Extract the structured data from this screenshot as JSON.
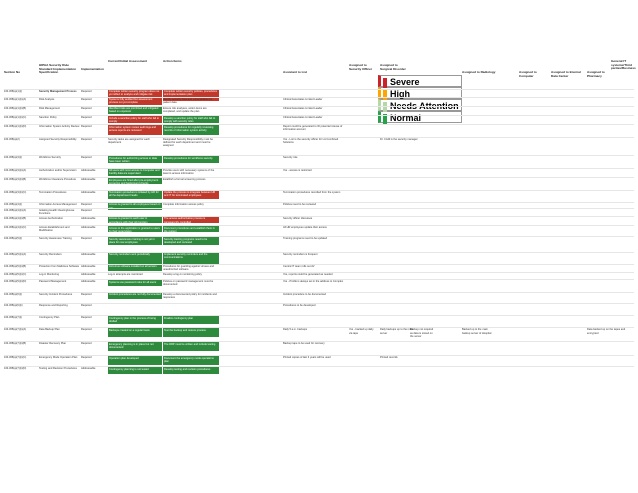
{
  "colors": {
    "severe": "#cc2229",
    "high": "#ffa500",
    "attention": "#b6d7a8",
    "normal": "#27a24a",
    "green_fill": "#2e8b3e",
    "red_fill": "#c0392b"
  },
  "headers": {
    "section_no": "Section No",
    "spec": "HIPAA Security Rule Standard Implementation Specification",
    "impl": "Implementation",
    "assessment": "Current/Initial Assessment",
    "action": "Action Items",
    "list": "Assistant to List",
    "assigned_office": "Assigned to Security Officer",
    "assigned_surgical": "Assigned to Surgical Disorder",
    "assigned_radiology": "Assigned to Radiology",
    "assigned_computer": "Assigned to Computer",
    "assigned_data": "Assigned to Internal Data Center",
    "assigned_pharmacy": "Assigned to Pharmacy",
    "general": "General IT systems/Third parties/Business"
  },
  "legend": [
    {
      "label": "Severe",
      "color": "#ffffff",
      "border": "#cc2229"
    },
    {
      "label": "High",
      "color": "#ffffff",
      "border": "#ffa500"
    },
    {
      "label": "Needs Attention",
      "color": "#ffffff",
      "border": "#b6d7a8"
    },
    {
      "label": "Normal",
      "color": "#ffffff",
      "border": "#27a24a"
    }
  ],
  "rows": [
    {
      "sec": "164.308(a)(1)(i)",
      "name": "Security Management Process",
      "imp": "Required",
      "a": "Complete written security program does not yet reflect to analyze and mitigate risk",
      "b": "Complete written security policies, procedures and implementation plan",
      "list": "",
      "bold": true
    },
    {
      "sec": "164.308(a)(1)(ii)(A)",
      "name": "Risk Analysis",
      "imp": "Required",
      "a": "Systems fully audited but assessment process not yet complete",
      "b": "Identify security risks and vulnerabilities for patient data",
      "list": "Clinical Associates Limited Leader"
    },
    {
      "sec": "164.308(a)(1)(ii)(B)",
      "name": "Risk Management",
      "imp": "Required",
      "a": "Identified risks are prioritized and mitigated based on exposure",
      "b": "Ensure risk analyses, action items are completed, and update the plan",
      "list": "Clinical Associates Limited Leader"
    },
    {
      "sec": "164.308(a)(1)(ii)(C)",
      "name": "Sanction Policy",
      "imp": "Required",
      "a": "Include a sanction policy for staff who fail to comply",
      "b": "Develop a sanction policy for staff who fail to comply with security rules",
      "list": "Clinical Associates Limited Leader"
    },
    {
      "sec": "164.308(a)(1)(ii)(D)",
      "name": "Information System Activity Review",
      "imp": "Required",
      "a": "Information system review audit logs and access reports are reviewed",
      "b": "Develop procedures for regularly reviewing records of information system activity",
      "list": "Report could be generated to ID potential misuse of information account"
    },
    {
      "sec": "164.308(a)(2)",
      "name": "Assigned Security Responsibility",
      "imp": "Required",
      "a": "Security tasks are assigned for each department",
      "b": "Designated Security Responsibility must be defined for each department and must be assigned",
      "list": "Yes - Lori is the security officer for LA Combined Solutions",
      "extra": "Dr. Civilli is the security manager"
    },
    {
      "sec": "164.308(a)(3)(i)",
      "name": "Workforce Security",
      "imp": "Required",
      "a": "Procedures for authorizing access to data have been written",
      "b": "Develop procedures for workforce security",
      "list": "Security role"
    },
    {
      "sec": "164.308(a)(3)(ii)(A)",
      "name": "Authorization and/or Supervision",
      "imp": "Addressable",
      "a": "All users with most access to Computer and Facility data are supervised",
      "b": "Provide users with necessary systems of the least to access information",
      "list": "Yes - access is restricted"
    },
    {
      "sec": "164.308(a)(3)(ii)(B)",
      "name": "Workforce Clearance Procedure",
      "imp": "Addressable",
      "a": "Employees are hired after pre-employment screening and background checks",
      "b": "Establish a formal screening process",
      "list": ""
    },
    {
      "sec": "164.308(a)(3)(ii)(C)",
      "name": "Termination Procedures",
      "imp": "Addressable",
      "a": "Termination procedure is initiated by HR for all the department heads",
      "b": "Update the process to integrate between HR and IT for terminated employees",
      "list": "Termination procedures recorded from the system"
    },
    {
      "sec": "164.308(a)(4)(i)",
      "name": "Information Access Management",
      "imp": "Required",
      "a": "Access is granted to all employees based on role",
      "b": "Complete information access policy",
      "list": "Policies need to be reviewed"
    },
    {
      "sec": "164.308(a)(4)(ii)(A)",
      "name": "Isolating Health Clearinghouse Functions",
      "imp": "Required",
      "a": "",
      "b": "",
      "list": ""
    },
    {
      "sec": "164.308(a)(4)(ii)(B)",
      "name": "Access Authorization",
      "imp": "Addressable",
      "a": "Access is granted to each user in accordance with their job function",
      "b": "The access authorization process is transparently controlled",
      "list": "Security officer discusses"
    },
    {
      "sec": "164.308(a)(4)(ii)(C)",
      "name": "Access Establishment and Modification",
      "imp": "Addressable",
      "a": "Access to the application is granted to users by their supervisors",
      "b": "Document procedures and establish them in the system",
      "list": "All HR employees update their access"
    },
    {
      "sec": "164.308(a)(5)(i)",
      "name": "Security Awareness Training",
      "imp": "Required",
      "a": "Security awareness training is not yet in place for new employees",
      "b": "Security training programs need to be developed and reviewed",
      "list": "Training programs need to be updated"
    },
    {
      "sec": "164.308(a)(5)(ii)(A)",
      "name": "Security Reminders",
      "imp": "Addressable",
      "a": "Security reminders sent periodically",
      "b": "Implement security reminders and the communications",
      "list": "Security reminders is frequent"
    },
    {
      "sec": "164.308(a)(5)(ii)(B)",
      "name": "Protection from Malicious Software",
      "imp": "Addressable",
      "a": "Anti-virus software installed on all servers",
      "b": "Procedures for guarding against viruses and unauthorized software",
      "list": "Central IT team rolls out AV"
    },
    {
      "sec": "164.308(a)(5)(ii)(C)",
      "name": "Log-in Monitoring",
      "imp": "Addressable",
      "a": "Log-in attempts are monitored",
      "b": "Develop a log-in monitoring policy",
      "list": "Yes, reports could be generated as needed"
    },
    {
      "sec": "164.308(a)(5)(ii)(D)",
      "name": "Password Management",
      "imp": "Addressable",
      "a": "Systems use password rules for all users",
      "b": "Policies on password management must be documented",
      "list": "Yes - Profile is always set in the address to Complex"
    },
    {
      "sec": "164.308(a)(6)(i)",
      "name": "Security Incident Procedures",
      "imp": "Required",
      "a": "Incident procedures are not fully documented",
      "b": "Develop a documented policy for incidents and responses",
      "list": "Incident procedure to be documented"
    },
    {
      "sec": "164.308(a)(6)(ii)",
      "name": "Response and Reporting",
      "imp": "Required",
      "a": "",
      "b": "",
      "list": "Procedures to be developed"
    },
    {
      "sec": "164.308(a)(7)(i)",
      "name": "Contingency Plan",
      "imp": "Required",
      "a": "Contingency plan in the process of being drafted",
      "b": "Finalize contingency plan",
      "list": ""
    },
    {
      "sec": "164.308(a)(7)(ii)(A)",
      "name": "Data Backup Plan",
      "imp": "Required",
      "a": "Backups created on a regular basis",
      "b": "Test the backup and restore process",
      "list": "Daily 5 a.m. backups",
      "extra": "Daily backups up to the main server",
      "ex2": "Yes - backed up daily via tape",
      "ex3": "Backup not required as data is stored on the server",
      "ex4": "Backed up to the main backup server of Hospital",
      "ex5": "Data backed up on the tapes and encrypted"
    },
    {
      "sec": "164.308(a)(7)(ii)(B)",
      "name": "Disaster Recovery Plan",
      "imp": "Required",
      "a": "Emergency planning is in place but not documented",
      "b": "The DRP must be written and include testing",
      "list": "Backup tape to be used for recovery"
    },
    {
      "sec": "164.308(a)(7)(ii)(C)",
      "name": "Emergency Mode Operation Plan",
      "imp": "Required",
      "a": "Operation plan developed",
      "b": "Document the emergency mode operations plan",
      "list": "Printed copies of last 3 years will be used",
      "extra": "Printed records"
    },
    {
      "sec": "164.308(a)(7)(ii)(D)",
      "name": "Testing and Revision Procedures",
      "imp": "Addressable",
      "a": "Contingency planning is not tested",
      "b": "Develop testing and revision procedures",
      "list": ""
    }
  ]
}
